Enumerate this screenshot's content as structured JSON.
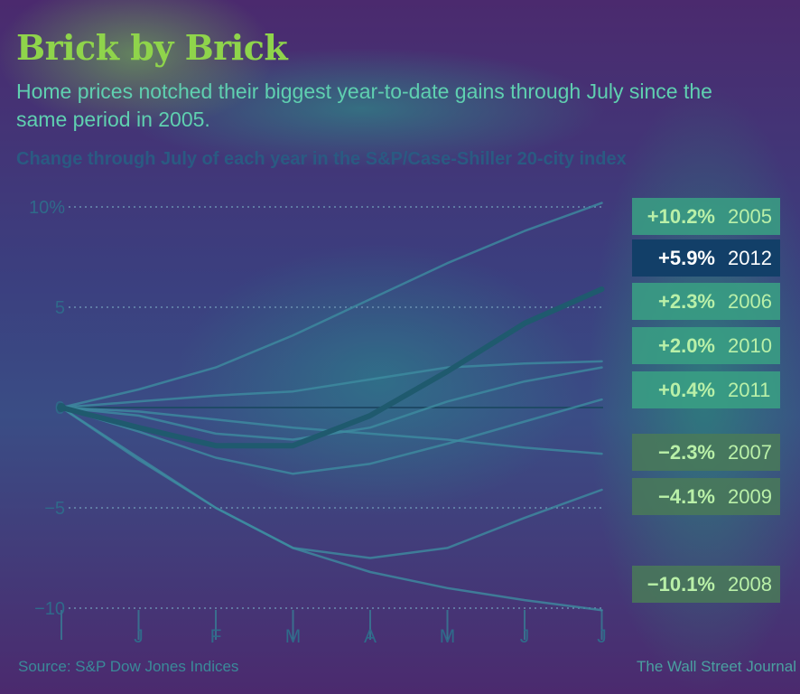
{
  "header": {
    "title": "Brick by Brick",
    "subtitle": "Home prices notched their biggest year-to-date gains through July since the same period in 2005.",
    "chart_label": "Change through July of each year in the S&P/Case-Shiller 20-city index"
  },
  "footer": {
    "source": "Source: S&P Dow Jones Indices",
    "credit": "The Wall Street Journal"
  },
  "chart_data": {
    "type": "line",
    "title": "Change through July of each year in the S&P/Case-Shiller 20-city index",
    "xlabel": "",
    "ylabel": "",
    "x": [
      "",
      "J",
      "F",
      "M",
      "A",
      "M",
      "J",
      "J"
    ],
    "ylim": [
      -10,
      10
    ],
    "yticks": [
      10,
      5,
      0,
      -5,
      -10
    ],
    "ytick_labels": [
      "10%",
      "5",
      "0",
      "-5",
      "-10"
    ],
    "grid": "dotted horizontal",
    "legend": "right, labels beside line ends",
    "highlight": "2012",
    "series": [
      {
        "name": "2005",
        "label": "+10.2%",
        "values": [
          0,
          0.9,
          2.0,
          3.6,
          5.4,
          7.2,
          8.8,
          10.2
        ]
      },
      {
        "name": "2012",
        "label": "+5.9%",
        "values": [
          0,
          -1.0,
          -1.9,
          -1.9,
          -0.4,
          1.8,
          4.2,
          5.9
        ]
      },
      {
        "name": "2006",
        "label": "+2.3%",
        "values": [
          0,
          0.3,
          0.6,
          0.8,
          1.4,
          2.0,
          2.2,
          2.3
        ]
      },
      {
        "name": "2010",
        "label": "+2.0%",
        "values": [
          0,
          -0.4,
          -1.3,
          -1.6,
          -1.0,
          0.3,
          1.3,
          2.0
        ]
      },
      {
        "name": "2011",
        "label": "+0.4%",
        "values": [
          0,
          -1.2,
          -2.5,
          -3.3,
          -2.8,
          -1.8,
          -0.7,
          0.4
        ]
      },
      {
        "name": "2007",
        "label": "-2.3%",
        "values": [
          0,
          -0.2,
          -0.6,
          -1.0,
          -1.3,
          -1.6,
          -2.0,
          -2.3
        ]
      },
      {
        "name": "2009",
        "label": "-4.1%",
        "values": [
          0,
          -2.5,
          -5.0,
          -7.0,
          -7.5,
          -7.0,
          -5.5,
          -4.1
        ]
      },
      {
        "name": "2008",
        "label": "-10.1%",
        "values": [
          0,
          -2.6,
          -5.0,
          -7.0,
          -8.2,
          -9.0,
          -9.6,
          -10.1
        ]
      }
    ]
  },
  "colors": {
    "highlight_line": "#1f5a6e",
    "other_lines": "#3d8ca0",
    "zero_line": "#1f4a66",
    "label_box": "#3aa184",
    "label_box_negative": "#4a7a58",
    "highlight_box": "#123f68"
  }
}
